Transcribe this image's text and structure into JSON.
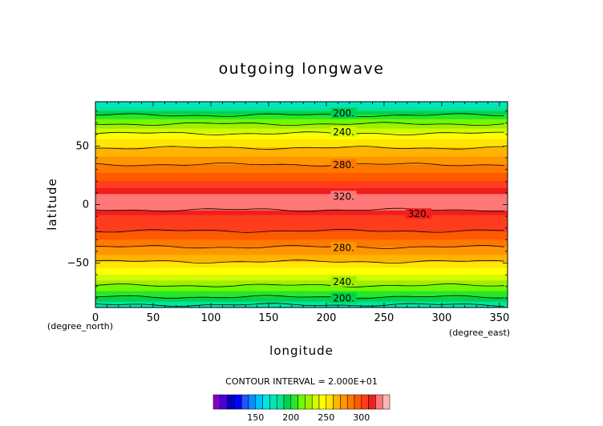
{
  "chart_data": {
    "type": "heatmap",
    "title": "outgoing longwave",
    "xlabel": "longitude",
    "ylabel": "latitude",
    "x_units": "(degree_east)",
    "y_units": "(degree_north)",
    "xlim": [
      0,
      357
    ],
    "ylim": [
      -88,
      88
    ],
    "x_ticks": [
      0,
      50,
      100,
      150,
      200,
      250,
      300,
      350
    ],
    "y_ticks": [
      -50,
      0,
      50
    ],
    "contour_interval_label": "CONTOUR INTERVAL = 2.000E+01",
    "contour_labels": [
      {
        "text": "200.",
        "x": 215,
        "y": 78
      },
      {
        "text": "240.",
        "x": 215,
        "y": 62
      },
      {
        "text": "280.",
        "x": 215,
        "y": 34
      },
      {
        "text": "320.",
        "x": 215,
        "y": 7
      },
      {
        "text": "320.",
        "x": 280,
        "y": -8
      },
      {
        "text": "280.",
        "x": 215,
        "y": -37
      },
      {
        "text": "240.",
        "x": 215,
        "y": -66
      },
      {
        "text": "200.",
        "x": 215,
        "y": -80
      }
    ],
    "profile": [
      {
        "lat": 88,
        "value": 168
      },
      {
        "lat": 83,
        "value": 180
      },
      {
        "lat": 78,
        "value": 196
      },
      {
        "lat": 72,
        "value": 212
      },
      {
        "lat": 66,
        "value": 228
      },
      {
        "lat": 60,
        "value": 242
      },
      {
        "lat": 55,
        "value": 252
      },
      {
        "lat": 50,
        "value": 258
      },
      {
        "lat": 45,
        "value": 265
      },
      {
        "lat": 40,
        "value": 272
      },
      {
        "lat": 35,
        "value": 279
      },
      {
        "lat": 30,
        "value": 286
      },
      {
        "lat": 25,
        "value": 293
      },
      {
        "lat": 20,
        "value": 300
      },
      {
        "lat": 15,
        "value": 308
      },
      {
        "lat": 12,
        "value": 314
      },
      {
        "lat": 9,
        "value": 320
      },
      {
        "lat": 5,
        "value": 326
      },
      {
        "lat": 1,
        "value": 328
      },
      {
        "lat": -3,
        "value": 324
      },
      {
        "lat": -6,
        "value": 316
      },
      {
        "lat": -10,
        "value": 308
      },
      {
        "lat": -15,
        "value": 304
      },
      {
        "lat": -20,
        "value": 302
      },
      {
        "lat": -25,
        "value": 298
      },
      {
        "lat": -30,
        "value": 290
      },
      {
        "lat": -35,
        "value": 282
      },
      {
        "lat": -40,
        "value": 274
      },
      {
        "lat": -45,
        "value": 266
      },
      {
        "lat": -50,
        "value": 258
      },
      {
        "lat": -55,
        "value": 248
      },
      {
        "lat": -60,
        "value": 240
      },
      {
        "lat": -65,
        "value": 230
      },
      {
        "lat": -70,
        "value": 218
      },
      {
        "lat": -75,
        "value": 208
      },
      {
        "lat": -80,
        "value": 198
      },
      {
        "lat": -84,
        "value": 186
      },
      {
        "lat": -88,
        "value": 172
      }
    ],
    "colorbar": {
      "levels": [
        90,
        100,
        110,
        120,
        130,
        140,
        150,
        160,
        170,
        180,
        190,
        200,
        210,
        220,
        230,
        240,
        250,
        260,
        270,
        280,
        290,
        300,
        310,
        320,
        330
      ],
      "colors": [
        "#7f00c6",
        "#4b00d9",
        "#0000c0",
        "#0000ff",
        "#2054ff",
        "#0090ff",
        "#00c0ff",
        "#00e6e6",
        "#00e6b4",
        "#00e696",
        "#00d250",
        "#28e628",
        "#6efa00",
        "#a0f000",
        "#d2fa00",
        "#ffff00",
        "#ffe600",
        "#ffb400",
        "#ff9600",
        "#ff7800",
        "#ff5a00",
        "#ff3c1e",
        "#f01e1e",
        "#ff7878",
        "#ffb4b4"
      ],
      "tick_labels": [
        {
          "text": "150",
          "value": 150
        },
        {
          "text": "200",
          "value": 200
        },
        {
          "text": "250",
          "value": 250
        },
        {
          "text": "300",
          "value": 300
        }
      ]
    }
  }
}
